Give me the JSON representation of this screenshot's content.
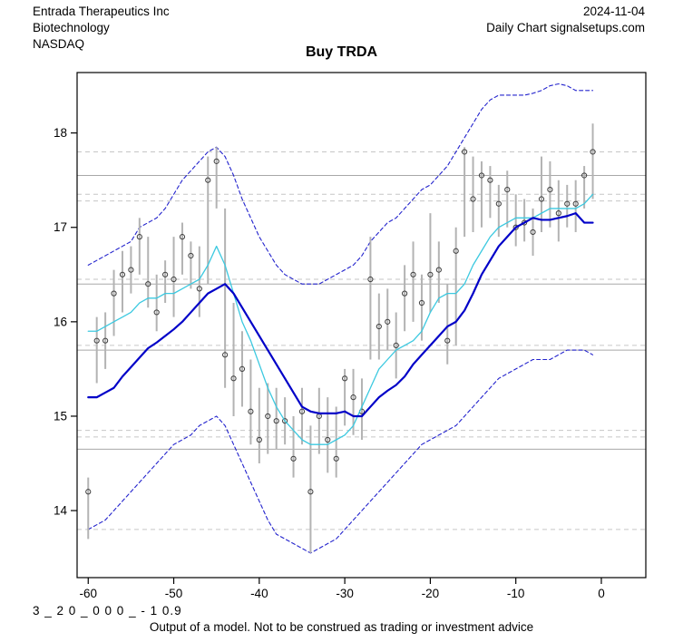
{
  "header": {
    "company": "Entrada Therapeutics Inc",
    "sector": "Biotechnology",
    "exchange": "NASDAQ",
    "date": "2024-11-04",
    "chart_info": "Daily Chart signalsetups.com"
  },
  "footer": {
    "code": "3 _ 2 0 _ 0 0 0 _ - 1 0.9",
    "disclaimer": "Output of a model. Not to be construed as trading or investment advice"
  },
  "chart_data": {
    "type": "line",
    "title": "Buy TRDA",
    "xlabel": "",
    "ylabel": "",
    "legend_position": "none",
    "axes": {
      "x_ticks": [
        -60,
        -50,
        -40,
        -30,
        -20,
        -10,
        0
      ],
      "y_ticks": [
        14,
        15,
        16,
        17,
        18
      ],
      "xlim": [
        -61.3,
        5.2
      ],
      "ylim": [
        13.29,
        18.64
      ]
    },
    "colors": {
      "bar": "#b3b3b3",
      "close_marker": "#3f3f3f",
      "slow_ma": "#0000c8",
      "fast_ma": "#3cc9e0",
      "band": "#2323cd",
      "level_solid": "#a8a8a8",
      "level_dashed": "#c6c6c6"
    },
    "levels": {
      "solid": [
        17.55,
        16.4,
        15.7,
        14.65
      ],
      "dashed": [
        17.8,
        17.35,
        17.28,
        16.45,
        15.75,
        14.85,
        14.78,
        13.8
      ]
    },
    "bars": {
      "x": [
        -60,
        -59,
        -58,
        -57,
        -56,
        -55,
        -54,
        -53,
        -52,
        -51,
        -50,
        -49,
        -48,
        -47,
        -46,
        -45,
        -44,
        -43,
        -42,
        -41,
        -40,
        -39,
        -38,
        -37,
        -36,
        -35,
        -34,
        -33,
        -32,
        -31,
        -30,
        -29,
        -28,
        -27,
        -26,
        -25,
        -24,
        -23,
        -22,
        -21,
        -20,
        -19,
        -18,
        -17,
        -16,
        -15,
        -14,
        -13,
        -12,
        -11,
        -10,
        -9,
        -8,
        -7,
        -6,
        -5,
        -4,
        -3,
        -2,
        -1
      ],
      "close": [
        14.2,
        15.8,
        15.8,
        16.3,
        16.5,
        16.55,
        16.9,
        16.4,
        16.1,
        16.5,
        16.45,
        16.9,
        16.7,
        16.35,
        17.5,
        17.7,
        15.65,
        15.4,
        15.5,
        15.05,
        14.75,
        15.0,
        14.95,
        14.95,
        14.55,
        15.05,
        14.2,
        15.0,
        14.75,
        14.55,
        15.4,
        15.2,
        15.05,
        16.45,
        15.95,
        16.0,
        15.75,
        16.3,
        16.5,
        16.2,
        16.5,
        16.55,
        15.8,
        16.75,
        17.8,
        17.3,
        17.55,
        17.5,
        17.25,
        17.4,
        17.0,
        17.05,
        16.95,
        17.3,
        17.4,
        17.15,
        17.25,
        17.25,
        17.55,
        17.8
      ],
      "low": [
        13.7,
        15.35,
        15.5,
        15.85,
        16.1,
        16.3,
        16.5,
        16.15,
        15.9,
        16.2,
        16.05,
        16.5,
        16.35,
        16.05,
        16.4,
        17.2,
        15.3,
        15.0,
        15.1,
        14.7,
        14.5,
        14.6,
        14.65,
        14.7,
        14.35,
        14.7,
        13.55,
        14.6,
        14.4,
        14.35,
        14.9,
        14.8,
        14.75,
        15.6,
        15.6,
        15.7,
        15.4,
        15.9,
        16.0,
        15.8,
        16.1,
        16.2,
        15.55,
        15.75,
        16.9,
        16.95,
        17.0,
        17.1,
        16.9,
        17.0,
        16.8,
        16.85,
        16.7,
        16.95,
        17.0,
        16.85,
        17.0,
        16.95,
        17.2,
        17.3
      ],
      "high": [
        14.35,
        16.05,
        16.1,
        16.55,
        16.75,
        16.8,
        17.1,
        16.9,
        16.5,
        16.65,
        16.9,
        17.05,
        16.85,
        16.8,
        17.75,
        17.85,
        17.2,
        16.2,
        15.9,
        15.6,
        15.3,
        15.35,
        15.3,
        15.2,
        15.0,
        15.3,
        14.9,
        15.3,
        15.2,
        15.1,
        15.5,
        15.5,
        15.4,
        16.9,
        16.3,
        16.35,
        16.1,
        16.6,
        16.85,
        16.5,
        17.15,
        16.85,
        16.4,
        17.0,
        17.85,
        17.75,
        17.7,
        17.65,
        17.45,
        17.6,
        17.35,
        17.3,
        17.2,
        17.75,
        17.7,
        17.5,
        17.45,
        17.5,
        17.65,
        18.1
      ]
    },
    "moving_averages": [
      {
        "name": "slow-ma",
        "color": "#0000c8",
        "values": [
          15.2,
          15.2,
          15.25,
          15.3,
          15.42,
          15.52,
          15.62,
          15.72,
          15.78,
          15.85,
          15.92,
          16.0,
          16.1,
          16.2,
          16.3,
          16.35,
          16.4,
          16.3,
          16.15,
          16.0,
          15.85,
          15.7,
          15.55,
          15.4,
          15.25,
          15.1,
          15.05,
          15.03,
          15.03,
          15.03,
          15.05,
          15.0,
          15.0,
          15.1,
          15.2,
          15.27,
          15.33,
          15.42,
          15.55,
          15.65,
          15.75,
          15.85,
          15.95,
          16.0,
          16.12,
          16.3,
          16.5,
          16.65,
          16.8,
          16.9,
          17.0,
          17.05,
          17.1,
          17.08,
          17.08,
          17.1,
          17.12,
          17.15,
          17.05,
          17.05
        ]
      },
      {
        "name": "fast-ma",
        "color": "#3cc9e0",
        "values": [
          15.9,
          15.9,
          15.95,
          16.0,
          16.05,
          16.1,
          16.2,
          16.25,
          16.25,
          16.3,
          16.3,
          16.35,
          16.4,
          16.45,
          16.6,
          16.8,
          16.6,
          16.3,
          16.0,
          15.8,
          15.55,
          15.3,
          15.1,
          14.95,
          14.85,
          14.75,
          14.7,
          14.7,
          14.7,
          14.75,
          14.8,
          14.9,
          15.1,
          15.3,
          15.5,
          15.6,
          15.7,
          15.75,
          15.8,
          15.9,
          16.1,
          16.25,
          16.3,
          16.3,
          16.4,
          16.6,
          16.75,
          16.9,
          17.0,
          17.05,
          17.1,
          17.1,
          17.1,
          17.15,
          17.2,
          17.2,
          17.2,
          17.2,
          17.25,
          17.35
        ]
      }
    ],
    "bands": {
      "upper": [
        16.6,
        16.65,
        16.7,
        16.75,
        16.8,
        16.85,
        17.0,
        17.05,
        17.1,
        17.2,
        17.35,
        17.5,
        17.6,
        17.7,
        17.8,
        17.85,
        17.75,
        17.55,
        17.3,
        17.1,
        16.9,
        16.75,
        16.6,
        16.5,
        16.45,
        16.4,
        16.4,
        16.4,
        16.45,
        16.5,
        16.55,
        16.6,
        16.7,
        16.85,
        16.95,
        17.05,
        17.1,
        17.2,
        17.3,
        17.4,
        17.45,
        17.55,
        17.65,
        17.8,
        17.95,
        18.1,
        18.25,
        18.35,
        18.4,
        18.4,
        18.4,
        18.4,
        18.42,
        18.45,
        18.5,
        18.52,
        18.5,
        18.45,
        18.45,
        18.45
      ],
      "lower": [
        13.8,
        13.85,
        13.9,
        14.0,
        14.1,
        14.2,
        14.3,
        14.4,
        14.5,
        14.6,
        14.7,
        14.75,
        14.8,
        14.9,
        14.95,
        15.0,
        14.9,
        14.7,
        14.5,
        14.3,
        14.1,
        13.9,
        13.75,
        13.7,
        13.65,
        13.6,
        13.55,
        13.6,
        13.65,
        13.7,
        13.8,
        13.9,
        14.0,
        14.1,
        14.2,
        14.3,
        14.4,
        14.5,
        14.6,
        14.7,
        14.75,
        14.8,
        14.85,
        14.9,
        15.0,
        15.1,
        15.2,
        15.3,
        15.4,
        15.45,
        15.5,
        15.55,
        15.6,
        15.6,
        15.6,
        15.65,
        15.7,
        15.7,
        15.7,
        15.65
      ]
    }
  }
}
